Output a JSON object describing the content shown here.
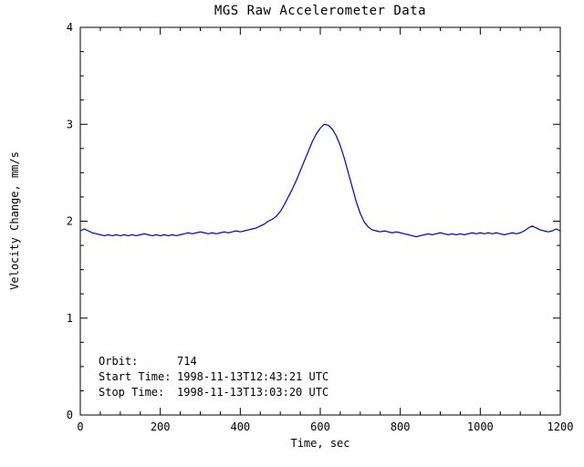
{
  "figure": {
    "background": "#ffffff",
    "text_color": "#000000"
  },
  "chart_data": {
    "type": "line",
    "title": "MGS Raw Accelerometer Data",
    "xlabel": "Time, sec",
    "ylabel": "Velocity Change, mm/s",
    "xlim": [
      0,
      1200
    ],
    "ylim": [
      0,
      4
    ],
    "xticks": [
      0,
      200,
      400,
      600,
      800,
      1000,
      1200
    ],
    "yticks": [
      0,
      1,
      2,
      3,
      4
    ],
    "xtick_labels": [
      "0",
      "200",
      "400",
      "600",
      "800",
      "1000",
      "1200"
    ],
    "ytick_labels": [
      "0",
      "1",
      "2",
      "3",
      "4"
    ],
    "x_minor_step": 50,
    "y_minor_step": 0.25,
    "grid": false,
    "legend_position": "none",
    "line_color": "#0000cc",
    "axis_color": "#000000",
    "series": [
      {
        "name": "velocity_change_mm_s",
        "x": [
          0,
          10,
          20,
          30,
          40,
          50,
          60,
          70,
          80,
          90,
          100,
          110,
          120,
          130,
          140,
          150,
          160,
          170,
          180,
          190,
          200,
          210,
          220,
          230,
          240,
          250,
          260,
          270,
          280,
          290,
          300,
          310,
          320,
          330,
          340,
          350,
          360,
          370,
          380,
          390,
          400,
          410,
          420,
          430,
          440,
          450,
          460,
          470,
          480,
          490,
          500,
          510,
          520,
          530,
          540,
          550,
          560,
          570,
          580,
          590,
          600,
          610,
          620,
          630,
          640,
          650,
          660,
          670,
          680,
          690,
          700,
          710,
          720,
          730,
          740,
          750,
          760,
          770,
          780,
          790,
          800,
          810,
          820,
          830,
          840,
          850,
          860,
          870,
          880,
          890,
          900,
          910,
          920,
          930,
          940,
          950,
          960,
          970,
          980,
          990,
          1000,
          1010,
          1020,
          1030,
          1040,
          1050,
          1060,
          1070,
          1080,
          1090,
          1100,
          1110,
          1120,
          1130,
          1140,
          1150,
          1160,
          1170,
          1180,
          1190,
          1200
        ],
        "y": [
          1.9,
          1.92,
          1.9,
          1.88,
          1.87,
          1.86,
          1.85,
          1.86,
          1.85,
          1.86,
          1.85,
          1.86,
          1.85,
          1.86,
          1.85,
          1.86,
          1.87,
          1.86,
          1.85,
          1.86,
          1.85,
          1.86,
          1.85,
          1.86,
          1.85,
          1.86,
          1.87,
          1.88,
          1.87,
          1.88,
          1.89,
          1.88,
          1.87,
          1.88,
          1.87,
          1.88,
          1.89,
          1.88,
          1.89,
          1.9,
          1.89,
          1.9,
          1.91,
          1.92,
          1.93,
          1.95,
          1.97,
          2.0,
          2.02,
          2.05,
          2.1,
          2.17,
          2.25,
          2.33,
          2.42,
          2.52,
          2.62,
          2.72,
          2.82,
          2.9,
          2.96,
          3.0,
          2.99,
          2.95,
          2.88,
          2.78,
          2.65,
          2.5,
          2.35,
          2.2,
          2.08,
          1.99,
          1.94,
          1.91,
          1.9,
          1.89,
          1.9,
          1.89,
          1.88,
          1.89,
          1.88,
          1.87,
          1.86,
          1.85,
          1.84,
          1.85,
          1.86,
          1.87,
          1.86,
          1.87,
          1.88,
          1.87,
          1.86,
          1.87,
          1.86,
          1.87,
          1.86,
          1.87,
          1.88,
          1.87,
          1.88,
          1.87,
          1.88,
          1.87,
          1.88,
          1.87,
          1.86,
          1.87,
          1.88,
          1.87,
          1.88,
          1.9,
          1.93,
          1.95,
          1.93,
          1.91,
          1.9,
          1.89,
          1.9,
          1.92,
          1.9
        ]
      }
    ],
    "annotations": {
      "orbit_label": "Orbit:",
      "orbit_value": "714",
      "start_label": "Start Time:",
      "start_value": "1998-11-13T12:43:21 UTC",
      "stop_label": "Stop Time:",
      "stop_value": "1998-11-13T13:03:20 UTC"
    }
  }
}
